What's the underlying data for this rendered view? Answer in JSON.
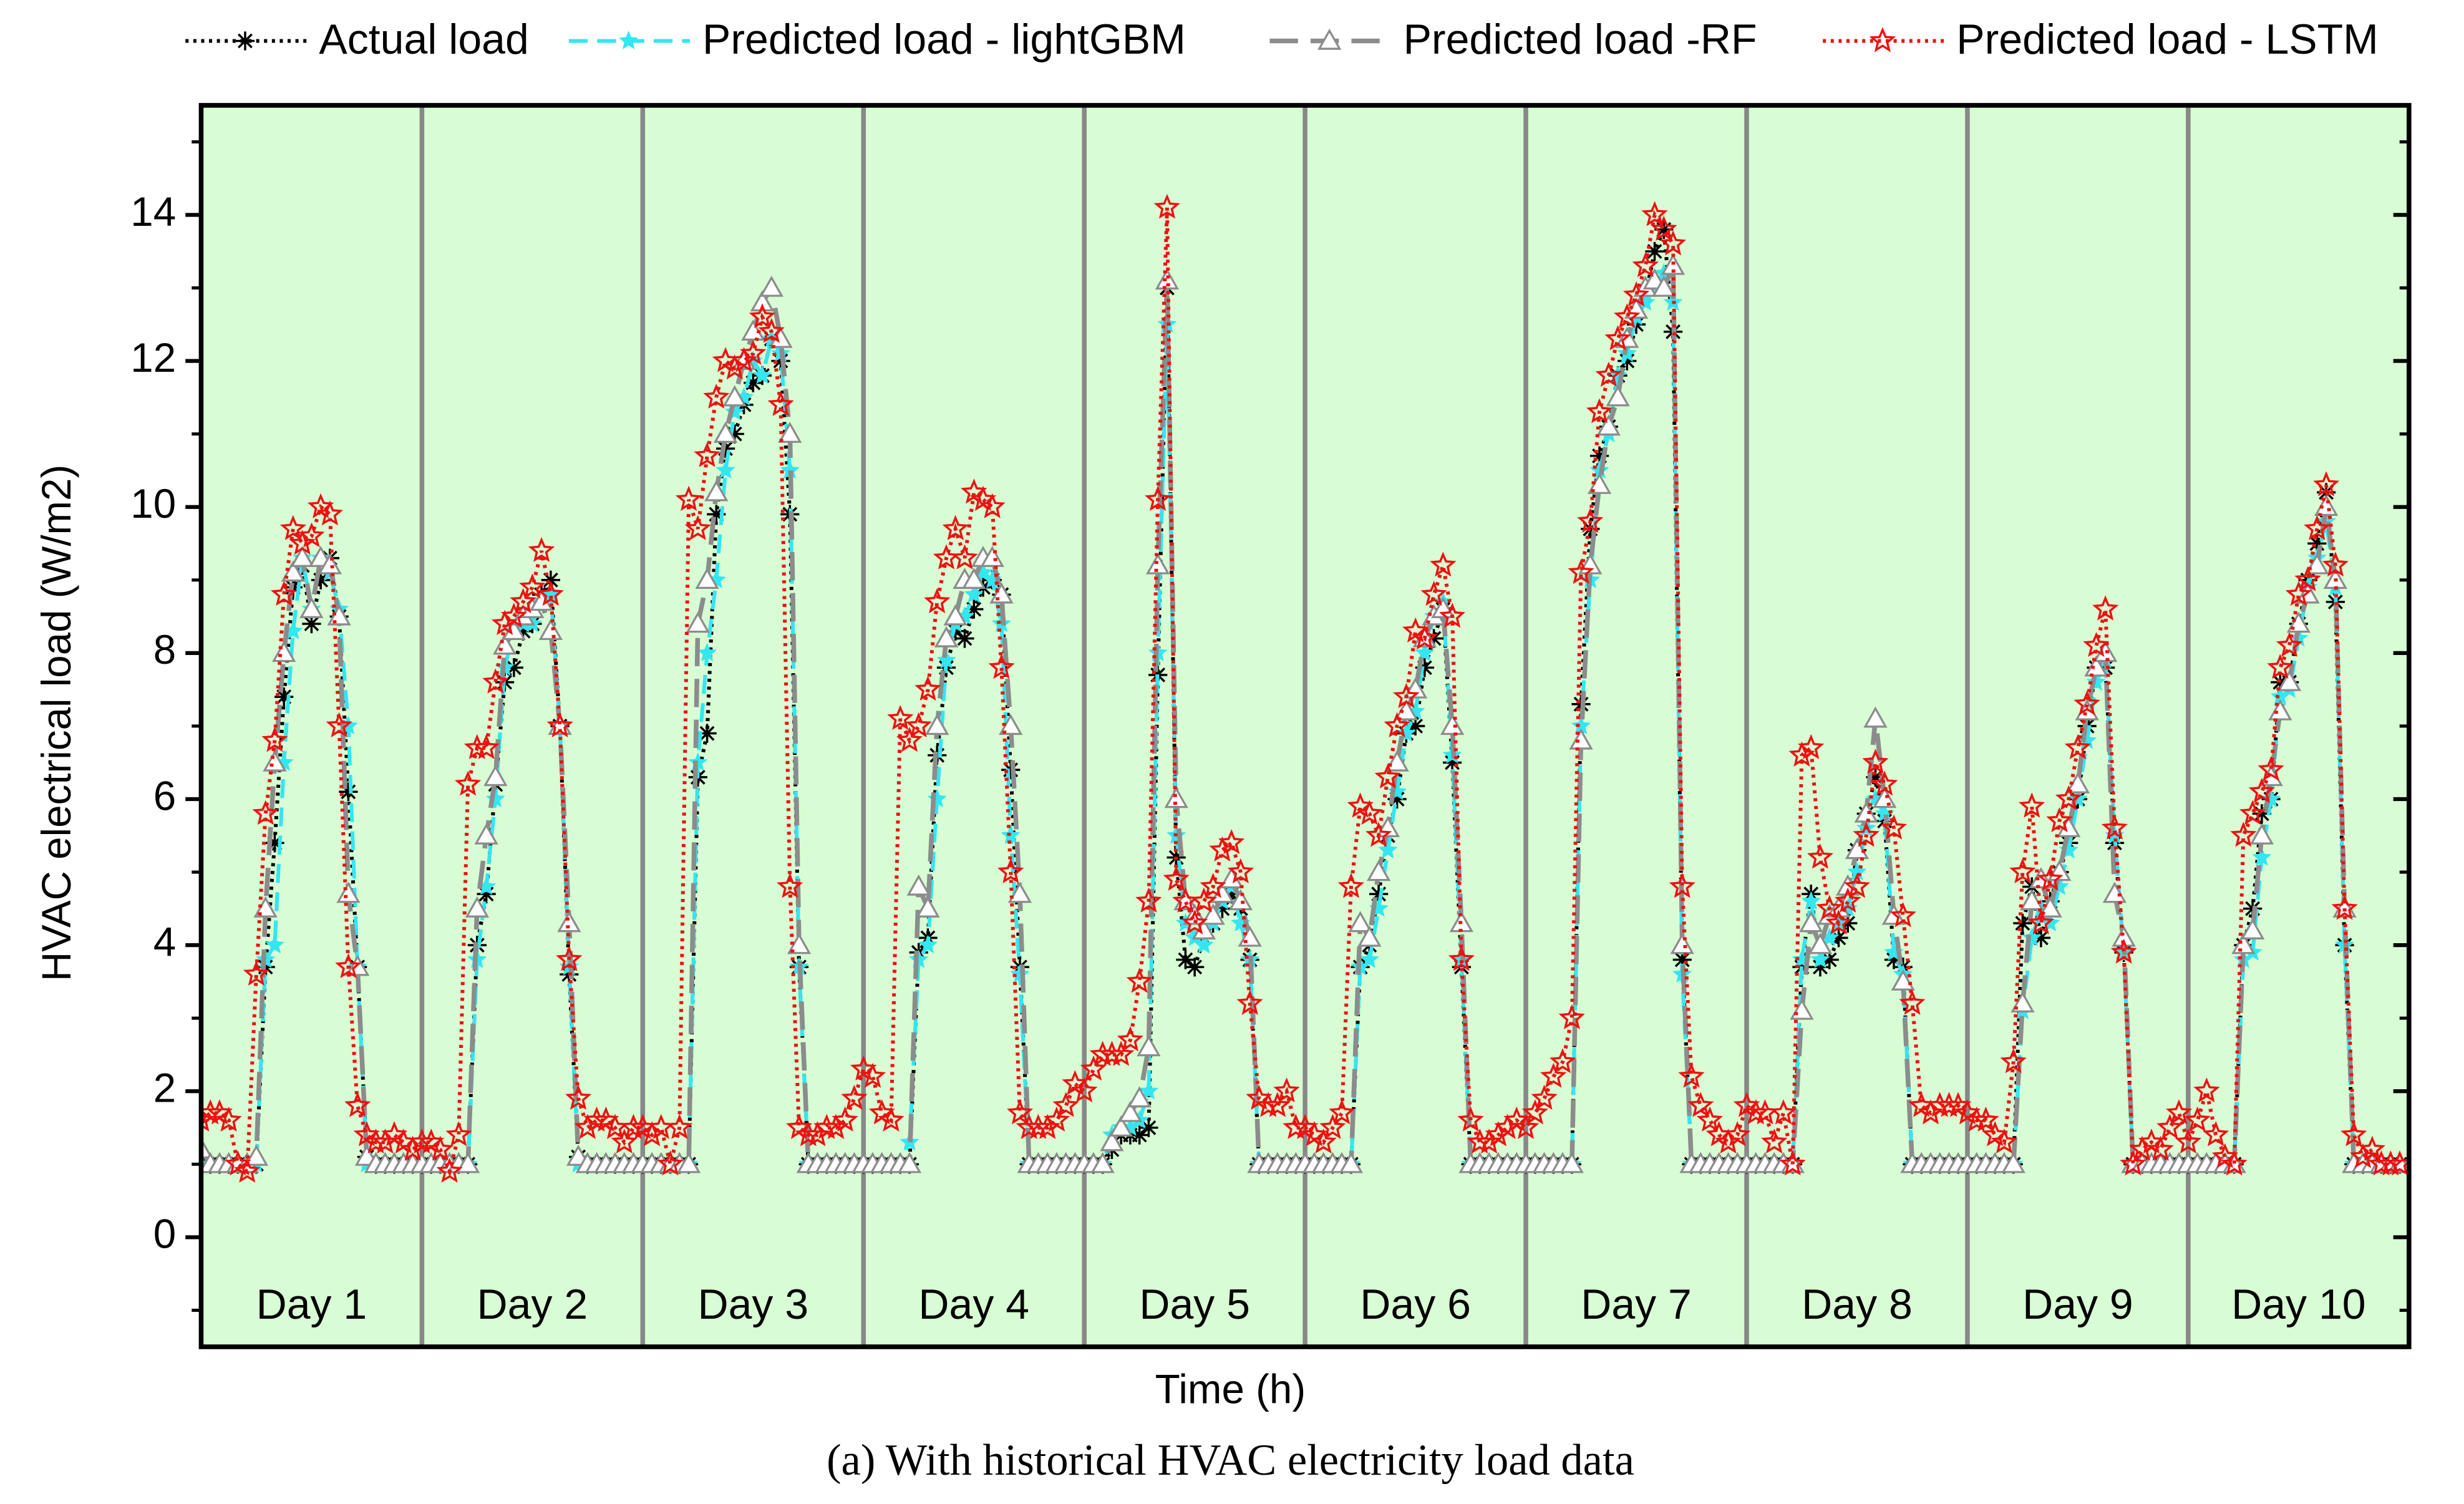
{
  "chart_data": {
    "type": "line",
    "ylabel": "HVAC electrical load (W/m2)",
    "xlabel": "Time (h)",
    "caption": "(a) With historical HVAC electricity load data",
    "xlim": [
      0,
      240
    ],
    "ylim": [
      -1.5,
      15.5
    ],
    "yticks": [
      0,
      2,
      4,
      6,
      8,
      10,
      12,
      14
    ],
    "yminorticks": [
      -1,
      1,
      3,
      5,
      7,
      9,
      11,
      13,
      15
    ],
    "background": "#d8fdd4",
    "day_boundaries": [
      24,
      48,
      72,
      96,
      120,
      144,
      168,
      192,
      216
    ],
    "days": [
      "Day 1",
      "Day 2",
      "Day 3",
      "Day 4",
      "Day 5",
      "Day 6",
      "Day 7",
      "Day 8",
      "Day 9",
      "Day 10"
    ],
    "x": [
      0,
      1,
      2,
      3,
      4,
      5,
      6,
      7,
      8,
      9,
      10,
      11,
      12,
      13,
      14,
      15,
      16,
      17,
      18,
      19,
      20,
      21,
      22,
      23,
      24,
      25,
      26,
      27,
      28,
      29,
      30,
      31,
      32,
      33,
      34,
      35,
      36,
      37,
      38,
      39,
      40,
      41,
      42,
      43,
      44,
      45,
      46,
      47,
      48,
      49,
      50,
      51,
      52,
      53,
      54,
      55,
      56,
      57,
      58,
      59,
      60,
      61,
      62,
      63,
      64,
      65,
      66,
      67,
      68,
      69,
      70,
      71,
      72,
      73,
      74,
      75,
      76,
      77,
      78,
      79,
      80,
      81,
      82,
      83,
      84,
      85,
      86,
      87,
      88,
      89,
      90,
      91,
      92,
      93,
      94,
      95,
      96,
      97,
      98,
      99,
      100,
      101,
      102,
      103,
      104,
      105,
      106,
      107,
      108,
      109,
      110,
      111,
      112,
      113,
      114,
      115,
      116,
      117,
      118,
      119,
      120,
      121,
      122,
      123,
      124,
      125,
      126,
      127,
      128,
      129,
      130,
      131,
      132,
      133,
      134,
      135,
      136,
      137,
      138,
      139,
      140,
      141,
      142,
      143,
      144,
      145,
      146,
      147,
      148,
      149,
      150,
      151,
      152,
      153,
      154,
      155,
      156,
      157,
      158,
      159,
      160,
      161,
      162,
      163,
      164,
      165,
      166,
      167,
      168,
      169,
      170,
      171,
      172,
      173,
      174,
      175,
      176,
      177,
      178,
      179,
      180,
      181,
      182,
      183,
      184,
      185,
      186,
      187,
      188,
      189,
      190,
      191,
      192,
      193,
      194,
      195,
      196,
      197,
      198,
      199,
      200,
      201,
      202,
      203,
      204,
      205,
      206,
      207,
      208,
      209,
      210,
      211,
      212,
      213,
      214,
      215,
      216,
      217,
      218,
      219,
      220,
      221,
      222,
      223,
      224,
      225,
      226,
      227,
      228,
      229,
      230,
      231,
      232,
      233,
      234,
      235,
      236,
      237,
      238,
      239
    ],
    "series": [
      {
        "name": "Actual load",
        "color": "#000000",
        "line_style": "dotted",
        "marker": "asterisk",
        "values": [
          1,
          1,
          1,
          1,
          1,
          1,
          1,
          3.7,
          5.4,
          7.4,
          8.9,
          9.2,
          8.4,
          9.0,
          9.3,
          8.5,
          6.1,
          3.7,
          1.1,
          1,
          1,
          1,
          1,
          1,
          1,
          1,
          1,
          1,
          1,
          1,
          4.0,
          4.7,
          6.2,
          7.6,
          7.8,
          8.3,
          8.4,
          8.8,
          9.0,
          7.0,
          3.6,
          1.1,
          1,
          1,
          1,
          1,
          1,
          1,
          1,
          1,
          1,
          1,
          1,
          1,
          6.3,
          6.9,
          9.9,
          10.8,
          11.0,
          11.4,
          11.7,
          11.8,
          12.3,
          12.0,
          9.9,
          3.7,
          1,
          1,
          1,
          1,
          1,
          1,
          1,
          1,
          1,
          1,
          1,
          1,
          3.9,
          4.1,
          6.6,
          7.8,
          8.3,
          8.2,
          8.6,
          8.9,
          9.0,
          8.8,
          6.4,
          3.7,
          1,
          1,
          1,
          1,
          1,
          1,
          1,
          1,
          1,
          1.2,
          1.4,
          1.4,
          1.4,
          1.5,
          7.7,
          13.0,
          5.2,
          3.8,
          3.7,
          4.1,
          4.3,
          4.5,
          4.7,
          4.5,
          3.8,
          1,
          1,
          1,
          1,
          1,
          1,
          1,
          1,
          1,
          1,
          1,
          3.7,
          4.0,
          4.7,
          5.5,
          6.0,
          6.9,
          7.0,
          7.8,
          8.2,
          8.6,
          6.5,
          3.7,
          1,
          1,
          1,
          1,
          1,
          1,
          1,
          1,
          1,
          1,
          1,
          1,
          7.3,
          9.7,
          10.7,
          11.1,
          11.8,
          12.0,
          12.5,
          12.9,
          13.5,
          13.8,
          12.4,
          3.8,
          1,
          1,
          1,
          1,
          1,
          1,
          1,
          1,
          1,
          1,
          1,
          1,
          3.7,
          4.7,
          3.7,
          3.8,
          4.1,
          4.3,
          5.3,
          5.8,
          6.3,
          5.7,
          3.8,
          3.7,
          1,
          1,
          1,
          1,
          1,
          1,
          1,
          1,
          1,
          1,
          1,
          1,
          4.3,
          4.8,
          4.1,
          4.6,
          5.0,
          5.4,
          6.0,
          7.0,
          7.8,
          7.8,
          5.4,
          3.9,
          1,
          1,
          1,
          1,
          1,
          1,
          1,
          1,
          1,
          1,
          1,
          1,
          4.0,
          4.5,
          5.8,
          6.0,
          7.6,
          7.6,
          8.4,
          9.0,
          9.5,
          10.2,
          8.7,
          4.0,
          1,
          1,
          1,
          1,
          1,
          1
        ]
      },
      {
        "name": "Predicted load - lightGBM",
        "color": "#33e6f0",
        "line_style": "dashed",
        "marker": "star",
        "values": [
          1,
          1,
          1,
          1,
          1,
          1,
          1,
          3.8,
          4.0,
          6.5,
          8.3,
          9.3,
          8.6,
          9.3,
          9.1,
          8.6,
          7.0,
          3.7,
          1,
          1,
          1,
          1,
          1,
          1,
          1,
          1,
          1,
          1,
          1,
          1,
          3.8,
          4.8,
          6.0,
          7.8,
          8.3,
          8.4,
          8.4,
          8.7,
          8.8,
          7.0,
          3.7,
          1.0,
          1,
          1,
          1,
          1,
          1,
          1,
          1,
          1,
          1,
          1,
          1,
          1,
          6.5,
          8.0,
          9.0,
          10.5,
          11.3,
          11.5,
          12.0,
          11.8,
          12.3,
          12.1,
          10.5,
          3.7,
          1,
          1,
          1,
          1,
          1,
          1,
          1,
          1,
          1,
          1,
          1,
          1.3,
          3.8,
          4.0,
          6.0,
          7.9,
          8.4,
          8.5,
          8.8,
          9.1,
          9.0,
          8.4,
          5.5,
          3.6,
          1,
          1,
          1,
          1,
          1,
          1,
          1,
          1,
          1,
          1.4,
          1.5,
          1.5,
          1.6,
          2.0,
          8.0,
          12.5,
          5.5,
          4.3,
          4.1,
          4.0,
          4.3,
          4.6,
          4.8,
          4.3,
          3.8,
          1,
          1,
          1,
          1,
          1,
          1,
          1,
          1,
          1,
          1,
          1,
          3.7,
          3.8,
          4.5,
          5.3,
          6.1,
          6.9,
          7.2,
          8.0,
          8.5,
          8.7,
          6.6,
          3.8,
          1,
          1,
          1,
          1,
          1,
          1,
          1,
          1,
          1,
          1,
          1,
          1,
          7.0,
          9.0,
          10.5,
          11.0,
          11.8,
          12.1,
          12.6,
          12.8,
          13.0,
          13.2,
          12.8,
          3.6,
          1,
          1,
          1,
          1,
          1,
          1,
          1,
          1,
          1,
          1,
          1,
          1,
          3.8,
          4.6,
          3.8,
          4.1,
          4.3,
          4.5,
          5.0,
          5.6,
          6.0,
          5.8,
          3.9,
          3.6,
          1,
          1,
          1,
          1,
          1,
          1,
          1,
          1,
          1,
          1,
          1,
          1,
          3.1,
          4.1,
          4.5,
          4.3,
          4.8,
          5.3,
          6.0,
          6.8,
          7.6,
          7.9,
          5.5,
          3.9,
          1,
          1,
          1,
          1,
          1,
          1,
          1,
          1,
          1,
          1,
          1,
          1,
          3.8,
          3.9,
          5.2,
          6.0,
          7.4,
          7.5,
          8.2,
          8.9,
          9.3,
          9.8,
          8.9,
          4.0,
          1,
          1,
          1,
          1,
          1,
          1
        ]
      },
      {
        "name": "Predicted load -RF",
        "color": "#8c8c8c",
        "line_style": "longdash",
        "marker": "triangle",
        "values": [
          1.2,
          1,
          1,
          1,
          1,
          1,
          1.1,
          4.5,
          6.5,
          8.0,
          9.1,
          9.3,
          8.6,
          9.3,
          9.2,
          8.5,
          4.7,
          3.7,
          1.1,
          1,
          1,
          1,
          1,
          1,
          1,
          1,
          1,
          1,
          1,
          1,
          4.5,
          5.5,
          6.3,
          8.1,
          8.3,
          8.5,
          8.6,
          8.7,
          8.3,
          7.0,
          4.3,
          1.1,
          1,
          1,
          1,
          1,
          1,
          1,
          1,
          1,
          1,
          1,
          1,
          1,
          8.4,
          9.0,
          10.2,
          11.0,
          11.5,
          12.0,
          12.4,
          12.8,
          13.0,
          12.3,
          11.0,
          4.0,
          1,
          1,
          1,
          1,
          1,
          1,
          1,
          1,
          1,
          1,
          1,
          1,
          4.8,
          4.5,
          7.0,
          8.2,
          8.5,
          9.0,
          9.0,
          9.3,
          9.3,
          8.8,
          7.0,
          4.7,
          1,
          1,
          1,
          1,
          1,
          1,
          1,
          1,
          1,
          1.3,
          1.5,
          1.7,
          1.9,
          2.6,
          9.2,
          13.1,
          6.0,
          4.6,
          4.4,
          4.2,
          4.4,
          4.7,
          4.9,
          4.6,
          4.1,
          1,
          1,
          1,
          1,
          1,
          1,
          1,
          1,
          1,
          1,
          1,
          4.3,
          4.1,
          5.0,
          5.6,
          6.5,
          7.2,
          7.5,
          8.2,
          8.5,
          8.6,
          7.0,
          4.3,
          1,
          1,
          1,
          1,
          1,
          1,
          1,
          1,
          1,
          1,
          1,
          1,
          6.8,
          9.2,
          10.3,
          11.1,
          11.5,
          12.3,
          12.7,
          13.0,
          13.1,
          13.0,
          13.3,
          4.0,
          1,
          1,
          1,
          1,
          1,
          1,
          1,
          1,
          1,
          1,
          1,
          1,
          3.1,
          4.3,
          4.0,
          4.4,
          4.5,
          4.8,
          5.3,
          5.8,
          7.1,
          6.0,
          4.4,
          3.5,
          1,
          1,
          1,
          1,
          1,
          1,
          1,
          1,
          1,
          1,
          1,
          1,
          3.2,
          4.6,
          4.9,
          4.5,
          5.0,
          5.6,
          6.2,
          7.2,
          7.8,
          8.0,
          4.7,
          4.1,
          1,
          1,
          1,
          1,
          1,
          1,
          1,
          1,
          1,
          1,
          1,
          1,
          4.0,
          4.2,
          5.5,
          6.3,
          7.2,
          7.6,
          8.4,
          8.8,
          9.2,
          10.0,
          9.0,
          4.5,
          1,
          1,
          1,
          1,
          1,
          1
        ]
      },
      {
        "name": "Predicted load - LSTM",
        "color": "#ee1111",
        "line_style": "dotted",
        "marker": "star-open",
        "values": [
          1.6,
          1.7,
          1.7,
          1.6,
          1.0,
          0.9,
          3.6,
          5.8,
          6.8,
          8.8,
          9.7,
          9.5,
          9.6,
          10.0,
          9.9,
          7.0,
          3.7,
          1.8,
          1.4,
          1.3,
          1.3,
          1.4,
          1.3,
          1.2,
          1.3,
          1.3,
          1.2,
          0.9,
          1.4,
          6.2,
          6.7,
          6.7,
          7.6,
          8.4,
          8.5,
          8.7,
          8.9,
          9.4,
          8.8,
          7.0,
          3.8,
          1.9,
          1.5,
          1.6,
          1.6,
          1.5,
          1.3,
          1.5,
          1.5,
          1.4,
          1.5,
          1.0,
          1.5,
          10.1,
          9.7,
          10.7,
          11.5,
          12.0,
          11.9,
          12.0,
          12.1,
          12.6,
          12.4,
          11.4,
          4.8,
          1.5,
          1.4,
          1.4,
          1.5,
          1.5,
          1.6,
          1.9,
          2.3,
          2.2,
          1.7,
          1.6,
          7.1,
          6.8,
          7.0,
          7.5,
          8.7,
          9.3,
          9.7,
          9.3,
          10.2,
          10.1,
          10.0,
          7.8,
          5.0,
          1.7,
          1.5,
          1.5,
          1.5,
          1.6,
          1.8,
          2.1,
          2.0,
          2.3,
          2.5,
          2.5,
          2.5,
          2.7,
          3.5,
          4.6,
          10.1,
          14.1,
          4.9,
          4.6,
          4.3,
          4.6,
          4.8,
          5.3,
          5.4,
          5.0,
          3.2,
          1.9,
          1.8,
          1.8,
          2.0,
          1.5,
          1.5,
          1.4,
          1.3,
          1.5,
          1.7,
          4.8,
          5.9,
          5.8,
          5.5,
          6.3,
          7.0,
          7.4,
          8.3,
          8.2,
          8.8,
          9.2,
          8.5,
          3.8,
          1.6,
          1.3,
          1.3,
          1.4,
          1.5,
          1.6,
          1.5,
          1.7,
          1.9,
          2.2,
          2.4,
          3.0,
          9.1,
          9.8,
          11.3,
          11.8,
          12.3,
          12.6,
          12.9,
          13.3,
          14.0,
          13.8,
          13.6,
          4.8,
          2.2,
          1.8,
          1.6,
          1.4,
          1.3,
          1.4,
          1.8,
          1.7,
          1.7,
          1.3,
          1.7,
          1.0,
          6.6,
          6.7,
          5.2,
          4.5,
          4.3,
          4.6,
          4.8,
          5.5,
          6.5,
          6.2,
          5.6,
          4.4,
          3.2,
          1.8,
          1.7,
          1.8,
          1.8,
          1.8,
          1.7,
          1.6,
          1.6,
          1.4,
          1.3,
          2.4,
          5.0,
          5.9,
          4.3,
          4.9,
          5.7,
          6.0,
          6.7,
          7.3,
          8.1,
          8.6,
          5.6,
          3.9,
          1.0,
          1.2,
          1.3,
          1.2,
          1.5,
          1.7,
          1.3,
          1.6,
          2.0,
          1.4,
          1.1,
          1.0,
          5.5,
          5.8,
          6.1,
          6.4,
          7.8,
          8.1,
          8.8,
          9.0,
          9.7,
          10.3,
          9.2,
          4.5,
          1.4,
          1.1,
          1.2,
          1.0,
          1.0,
          1.0
        ]
      }
    ]
  }
}
